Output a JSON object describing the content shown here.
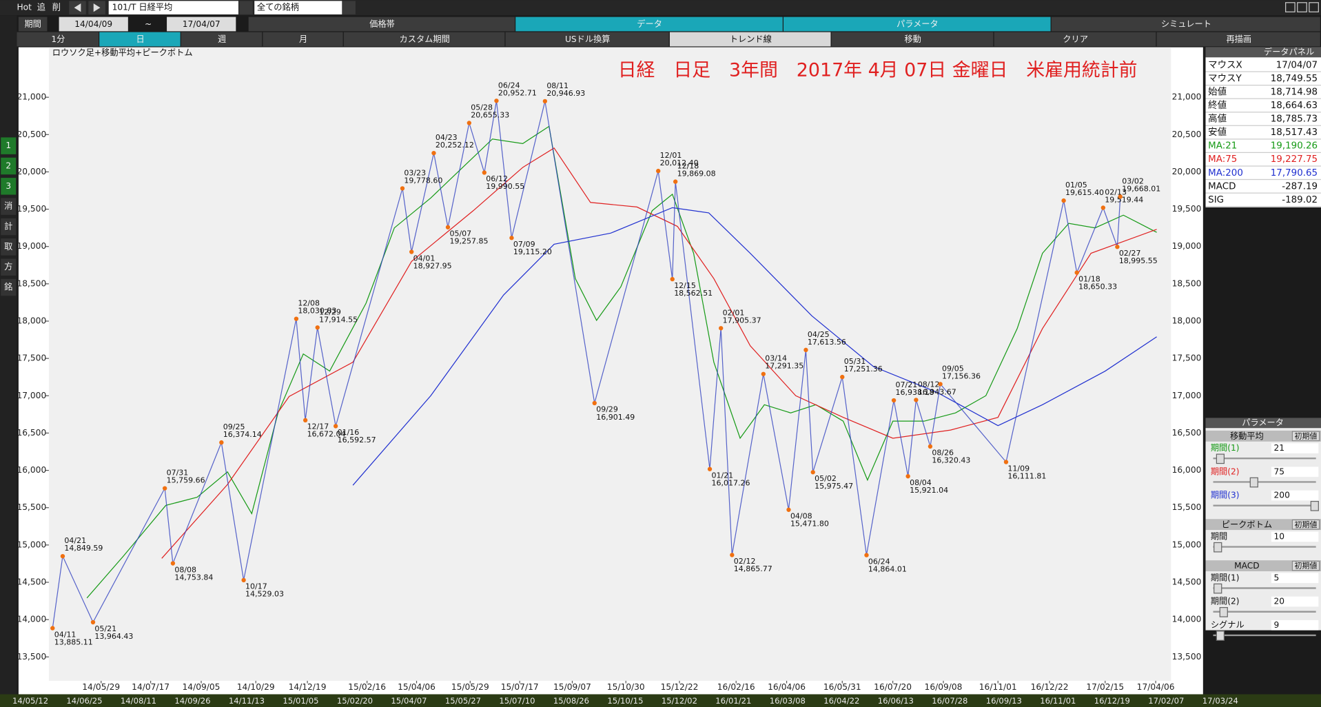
{
  "toolbar": {
    "hot": "Hot",
    "add": "追",
    "del": "削",
    "symbol": "101/T 日経平均",
    "universe": "全ての銘柄",
    "period_label": "期間",
    "tilde": "~",
    "tabs": [
      "価格帯",
      "データ",
      "パラメータ",
      "シミュレート"
    ],
    "buttons": [
      "1分",
      "日",
      "週",
      "月",
      "カスタム期間",
      "USドル換算",
      "トレンド線",
      "移動",
      "クリア",
      "再描画"
    ]
  },
  "sidebar": [
    "1",
    "2",
    "3",
    "消",
    "計",
    "取",
    "方",
    "銘"
  ],
  "chart_data": {
    "type": "line",
    "title": "日経　日足　3年間　2017年 4月 07日 金曜日　米雇用統計前",
    "subtitle": "ロウソク足+移動平均+ピークボトム",
    "xlim": [
      "14/04/09",
      "17/04/07"
    ],
    "xticks": [
      "14/05/29",
      "14/07/17",
      "14/09/05",
      "14/10/29",
      "14/12/19",
      "15/02/16",
      "15/04/06",
      "15/05/29",
      "15/07/17",
      "15/09/07",
      "15/10/30",
      "15/12/22",
      "16/02/16",
      "16/04/06",
      "16/05/31",
      "16/07/20",
      "16/09/08",
      "16/11/01",
      "16/12/22",
      "17/02/15",
      "17/04/06"
    ],
    "ylim": [
      13180,
      21670
    ],
    "yticks": [
      {
        "value": 13500,
        "label": "13,500"
      },
      {
        "value": 14000,
        "label": "14,000"
      },
      {
        "value": 14500,
        "label": "14,500"
      },
      {
        "value": 15000,
        "label": "15,000"
      },
      {
        "value": 15500,
        "label": "15,500"
      },
      {
        "value": 16000,
        "label": "16,000"
      },
      {
        "value": 16500,
        "label": "16,500"
      },
      {
        "value": 17000,
        "label": "17,000"
      },
      {
        "value": 17500,
        "label": "17,500"
      },
      {
        "value": 18000,
        "label": "18,000"
      },
      {
        "value": 18500,
        "label": "18,500"
      },
      {
        "value": 19000,
        "label": "19,000"
      },
      {
        "value": 19500,
        "label": "19,500"
      },
      {
        "value": 20000,
        "label": "20,000"
      },
      {
        "value": 20500,
        "label": "20,500"
      },
      {
        "value": 21000,
        "label": "21,000"
      }
    ],
    "series": [
      {
        "name": "MA:21",
        "color": "#169a16",
        "x": [
          "14/05/15",
          "14/06/20",
          "14/08/01",
          "14/09/01",
          "14/10/01",
          "14/10/25",
          "14/11/20",
          "14/12/15",
          "15/01/10",
          "15/02/15",
          "15/03/15",
          "15/04/20",
          "15/05/20",
          "15/06/20",
          "15/07/20",
          "15/08/15",
          "15/09/10",
          "15/10/01",
          "15/10/25",
          "15/11/25",
          "15/12/15",
          "16/01/05",
          "16/01/25",
          "16/02/20",
          "16/03/15",
          "16/04/10",
          "16/05/05",
          "16/06/01",
          "16/06/25",
          "16/07/20",
          "16/08/20",
          "16/09/20",
          "16/10/20",
          "16/11/20",
          "16/12/15",
          "17/01/10",
          "17/02/05",
          "17/03/05",
          "17/04/07"
        ],
        "values": [
          14290,
          14850,
          15530,
          15640,
          15980,
          15420,
          16770,
          17560,
          17330,
          18240,
          19250,
          19650,
          20040,
          20440,
          20380,
          20610,
          18570,
          18010,
          18460,
          19480,
          19700,
          18910,
          17450,
          16430,
          16880,
          16770,
          16880,
          16660,
          15870,
          16660,
          16660,
          16770,
          17000,
          17900,
          18910,
          19310,
          19250,
          19420,
          19190
        ]
      },
      {
        "name": "MA:75",
        "color": "#e02020",
        "x": [
          "14/07/28",
          "14/10/01",
          "14/12/01",
          "15/02/02",
          "15/04/01",
          "15/06/01",
          "15/07/20",
          "15/08/20",
          "15/09/25",
          "15/11/10",
          "15/12/20",
          "16/01/25",
          "16/03/01",
          "16/04/15",
          "16/06/01",
          "16/07/20",
          "16/09/15",
          "16/11/01",
          "16/12/15",
          "17/02/01",
          "17/04/07"
        ],
        "values": [
          14820,
          15810,
          16990,
          17450,
          18800,
          19480,
          20060,
          20320,
          19590,
          19530,
          19270,
          18570,
          17670,
          17000,
          16710,
          16430,
          16540,
          16710,
          17900,
          18910,
          19230
        ]
      },
      {
        "name": "MA:200",
        "color": "#2030d0",
        "x": [
          "15/02/02",
          "15/04/20",
          "15/07/01",
          "15/08/20",
          "15/10/15",
          "15/12/15",
          "16/01/20",
          "16/03/01",
          "16/05/01",
          "16/07/01",
          "16/09/01",
          "16/11/01",
          "16/12/15",
          "17/02/15",
          "17/04/07"
        ],
        "values": [
          15800,
          17000,
          18350,
          19030,
          19180,
          19520,
          19450,
          18910,
          18070,
          17390,
          17050,
          16600,
          16880,
          17330,
          17790
        ]
      }
    ],
    "peaks": {
      "color": "#f07010",
      "line_color": "#3040c0",
      "x": [
        "14/04/11",
        "14/04/21",
        "14/05/21",
        "14/07/31",
        "14/08/08",
        "14/09/25",
        "14/10/17",
        "14/12/08",
        "14/12/17",
        "14/12/29",
        "15/01/16",
        "15/03/23",
        "15/04/01",
        "15/04/23",
        "15/05/07",
        "15/05/28",
        "15/06/12",
        "15/06/24",
        "15/07/09",
        "15/08/11",
        "15/09/29",
        "15/12/01",
        "15/12/15",
        "15/12/18",
        "16/01/21",
        "16/02/01",
        "16/02/12",
        "16/03/14",
        "16/04/08",
        "16/04/25",
        "16/05/02",
        "16/05/31",
        "16/06/24",
        "16/07/21",
        "16/08/04",
        "16/08/12",
        "16/08/26",
        "16/09/05",
        "16/11/09",
        "17/01/05",
        "17/01/18",
        "17/02/13",
        "17/02/27",
        "17/03/02"
      ],
      "labels": [
        "04/11",
        "04/21",
        "05/21",
        "07/31",
        "08/08",
        "09/25",
        "10/17",
        "12/08",
        "12/17",
        "12/29",
        "01/16",
        "03/23",
        "04/01",
        "04/23",
        "05/07",
        "05/28",
        "06/12",
        "06/24",
        "07/09",
        "08/11",
        "09/29",
        "12/01",
        "12/15",
        "12/18",
        "01/21",
        "02/01",
        "02/12",
        "03/14",
        "04/08",
        "04/25",
        "05/02",
        "05/31",
        "06/24",
        "07/21",
        "08/04",
        "08/12",
        "08/26",
        "09/05",
        "11/09",
        "01/05",
        "01/18",
        "02/13",
        "02/27",
        "03/02"
      ],
      "values": [
        13885.11,
        14849.59,
        13964.43,
        15759.66,
        14753.84,
        16374.14,
        14529.03,
        18030.83,
        16672.04,
        17914.55,
        16592.57,
        19778.6,
        18927.95,
        20252.12,
        19257.85,
        20655.33,
        19990.55,
        20952.71,
        19115.2,
        20946.93,
        16901.49,
        20012.4,
        18562.51,
        19869.08,
        16017.26,
        17905.37,
        14865.77,
        17291.35,
        15471.8,
        17613.56,
        15975.47,
        17251.36,
        14864.01,
        16938.18,
        15921.04,
        16943.67,
        16320.43,
        17156.36,
        16111.81,
        19615.4,
        18650.33,
        19519.44,
        18995.55,
        19668.01
      ],
      "value_labels": [
        "13,885.11",
        "14,849.59",
        "13,964.43",
        "15,759.66",
        "14,753.84",
        "16,374.14",
        "14,529.03",
        "18,030.83",
        "16,672.04",
        "17,914.55",
        "16,592.57",
        "19,778.60",
        "18,927.95",
        "20,252.12",
        "19,257.85",
        "20,655.33",
        "19,990.55",
        "20,952.71",
        "19,115.20",
        "20,946.93",
        "16,901.49",
        "20,012.40",
        "18,562.51",
        "19,869.08",
        "16,017.26",
        "17,905.37",
        "14,865.77",
        "17,291.35",
        "15,471.80",
        "17,613.56",
        "15,975.47",
        "17,251.36",
        "14,864.01",
        "16,938.18",
        "15,921.04",
        "16,943.67",
        "16,320.43",
        "17,156.36",
        "16,111.81",
        "19,615.40",
        "18,650.33",
        "19,519.44",
        "18,995.55",
        "19,668.01"
      ]
    }
  },
  "navigator_labels": [
    "14/05/12",
    "14/06/25",
    "14/08/11",
    "14/09/26",
    "14/11/13",
    "15/01/05",
    "15/02/20",
    "15/04/07",
    "15/05/27",
    "15/07/10",
    "15/08/26",
    "15/10/15",
    "15/12/02",
    "16/01/21",
    "16/03/08",
    "16/04/22",
    "16/06/13",
    "16/07/28",
    "16/09/13",
    "16/11/01",
    "16/12/19",
    "17/02/07",
    "17/03/24"
  ],
  "data_panel": {
    "title": "データパネル",
    "rows": [
      [
        "マウスX",
        "17/04/07"
      ],
      [
        "マウスY",
        "18,749.55"
      ],
      [
        "始値",
        "18,714.98"
      ],
      [
        "終値",
        "18,664.63"
      ],
      [
        "高値",
        "18,785.73"
      ],
      [
        "安値",
        "18,517.43"
      ]
    ],
    "ma_values": [
      "19,190.26",
      "19,227.75",
      "17,790.65"
    ],
    "macd_rows": [
      [
        "MACD",
        "-287.19"
      ],
      [
        "SIG",
        "-189.02"
      ]
    ]
  },
  "parameters": {
    "title": "パラメータ",
    "reset": "初期値",
    "sections": [
      {
        "title": "移動平均",
        "rows": [
          [
            "期間(1)",
            "21"
          ],
          [
            "期間(2)",
            "75"
          ],
          [
            "期間(3)",
            "200"
          ]
        ]
      },
      {
        "title": "ピークボトム",
        "rows": [
          [
            "期間",
            "10"
          ]
        ]
      },
      {
        "title": "MACD",
        "rows": [
          [
            "期間(1)",
            "5"
          ],
          [
            "期間(2)",
            "20"
          ],
          [
            "シグナル",
            "9"
          ]
        ]
      }
    ]
  }
}
